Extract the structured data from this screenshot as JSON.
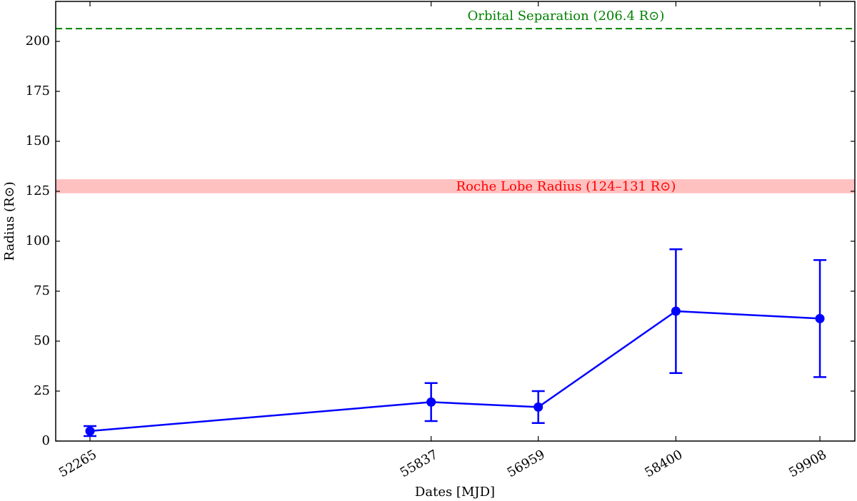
{
  "chart_data": {
    "type": "line",
    "x_label": "Dates [MJD]",
    "y_label": "Radius (R⊙)",
    "x": [
      52265,
      55837,
      56959,
      58400,
      59908
    ],
    "series": [
      {
        "color": "#0000ff",
        "values": [
          5,
          19.5,
          17,
          65,
          61.3
        ],
        "errors": [
          2.5,
          9.5,
          8,
          31,
          29.3
        ]
      }
    ],
    "xlim": [
      51906,
      60274
    ],
    "ylim": [
      0,
      220
    ],
    "xticks": [
      52265,
      55837,
      56959,
      58400,
      59908
    ],
    "yticks": [
      0,
      25,
      50,
      75,
      100,
      125,
      150,
      175,
      200
    ],
    "reference_lines": [
      {
        "label": "Orbital Separation (206.4 R⊙)",
        "value": 206.4,
        "color": "#008000",
        "style": "dashed"
      }
    ],
    "bands": [
      {
        "label": "Roche Lobe Radius (124–131 R⊙)",
        "range": [
          124,
          131
        ],
        "color": "#ffc0c0",
        "label_color": "#ff0000"
      }
    ]
  }
}
